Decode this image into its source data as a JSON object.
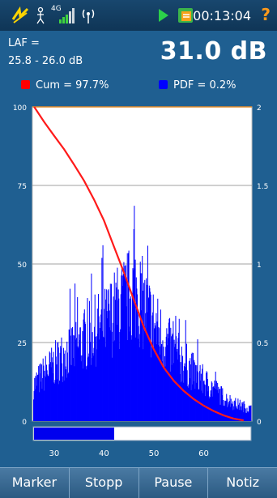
{
  "status_bar": {
    "time": "00:13:04",
    "help": "?",
    "network": "4G",
    "icons": [
      "app-logo-icon",
      "person-icon",
      "signal-bars-icon",
      "wifi-icon",
      "play-icon",
      "document-icon"
    ]
  },
  "header": {
    "metric_label": "LAF =",
    "metric_range": "25.8 - 26.0 dB",
    "metric_value": "31.0 dB",
    "legend_cum": "Cum = 97.7%",
    "legend_pdf": "PDF = 0.2%",
    "colors": {
      "cum": "#ff0000",
      "pdf": "#0000ff"
    }
  },
  "chart_data": {
    "type": "bar",
    "x_ticks": [
      "30",
      "40",
      "50",
      "60"
    ],
    "y_left_ticks": [
      "0",
      "25",
      "50",
      "75",
      "100"
    ],
    "y_right_ticks": [
      "0",
      "0.5",
      "1",
      "1.5",
      "2"
    ],
    "xlim": [
      25.8,
      69.5
    ],
    "ylim_left": [
      0,
      100
    ],
    "ylim_right": [
      0,
      2
    ],
    "cum_curve": [
      [
        26,
        100
      ],
      [
        28,
        95.2
      ],
      [
        30,
        90.8
      ],
      [
        32,
        86.5
      ],
      [
        34,
        81.6
      ],
      [
        36,
        76.5
      ],
      [
        38,
        70.5
      ],
      [
        40,
        63.8
      ],
      [
        42,
        55.5
      ],
      [
        44,
        47.3
      ],
      [
        46,
        38.5
      ],
      [
        48,
        29.9
      ],
      [
        50,
        22.8
      ],
      [
        52,
        17
      ],
      [
        54,
        12.8
      ],
      [
        56,
        9.6
      ],
      [
        58,
        7
      ],
      [
        60,
        4.9
      ],
      [
        62,
        3.2
      ],
      [
        64,
        1.8
      ],
      [
        66,
        0.8
      ],
      [
        68,
        0.2
      ]
    ],
    "pdf_envelope": [
      [
        26,
        0.25
      ],
      [
        28,
        0.33
      ],
      [
        30,
        0.39
      ],
      [
        32,
        0.46
      ],
      [
        34,
        0.5
      ],
      [
        36,
        0.56
      ],
      [
        38,
        0.62
      ],
      [
        40,
        0.66
      ],
      [
        42,
        0.75
      ],
      [
        44,
        0.82
      ],
      [
        45,
        0.86
      ],
      [
        46,
        0.9
      ],
      [
        47,
        0.86
      ],
      [
        48,
        0.78
      ],
      [
        50,
        0.66
      ],
      [
        52,
        0.55
      ],
      [
        54,
        0.47
      ],
      [
        56,
        0.4
      ],
      [
        58,
        0.33
      ],
      [
        60,
        0.27
      ],
      [
        62,
        0.22
      ],
      [
        64,
        0.16
      ],
      [
        66,
        0.12
      ],
      [
        68,
        0.1
      ],
      [
        69.5,
        0.08
      ]
    ],
    "reference_line": 100,
    "scroll_range": [
      25.8,
      42
    ]
  },
  "toolbar": {
    "marker": "Marker",
    "stop": "Stopp",
    "pause": "Pause",
    "note": "Notiz"
  }
}
